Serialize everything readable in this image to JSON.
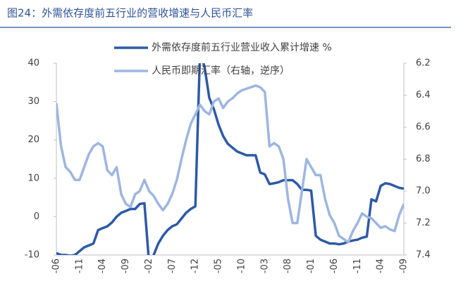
{
  "chart_data": {
    "type": "line",
    "title": "图24：外需依存度前五行业的营收增速与人民币汇率",
    "categories": [
      "-06",
      null,
      null,
      null,
      null,
      "-11",
      null,
      null,
      null,
      null,
      "-04",
      null,
      null,
      null,
      null,
      "-09",
      null,
      null,
      null,
      null,
      "-02",
      null,
      null,
      null,
      null,
      "-07",
      null,
      null,
      null,
      null,
      "-12",
      null,
      null,
      null,
      null,
      "-05",
      null,
      null,
      null,
      null,
      "-10",
      null,
      null,
      null,
      null,
      "-03",
      null,
      null,
      null,
      null,
      "-08",
      null,
      null,
      null,
      null,
      "-01",
      null,
      null,
      null,
      null,
      "-06",
      null,
      null,
      null,
      null,
      "-11",
      null,
      null,
      null,
      null,
      "-04",
      null,
      null,
      null,
      null,
      "-09"
    ],
    "series": [
      {
        "name": "外需依存度前五行业营业收入累计增速 %",
        "color": "#2e59a7",
        "axis": "y",
        "values": [
          -9.5,
          -10,
          -10,
          -10.2,
          -10,
          -9,
          -8,
          -7.5,
          -7,
          -3.5,
          -3,
          -2.5,
          -1.5,
          0,
          1,
          1.5,
          2,
          2,
          3.3,
          3.5,
          -12,
          -10,
          -7,
          -5,
          -3.5,
          -2.5,
          -2,
          -0.5,
          1,
          2,
          2.7,
          43,
          39,
          31,
          28,
          24,
          21,
          19,
          18,
          17,
          16.5,
          16,
          16,
          16,
          11.5,
          11,
          8.5,
          8.7,
          9,
          9.5,
          9.5,
          9.5,
          8.5,
          7,
          7,
          6.8,
          -5,
          -6,
          -6.5,
          -7,
          -7,
          -7.2,
          -7,
          -6.5,
          -6.2,
          -6,
          -5.5,
          -5.2,
          4.5,
          4,
          8,
          8.7,
          8.5,
          8,
          7.5,
          7.3
        ]
      },
      {
        "name": "人民币即期汇率（右轴，逆序）",
        "color": "#9db6e0",
        "axis": "y2",
        "values": [
          6.45,
          6.72,
          6.85,
          6.88,
          6.93,
          6.93,
          6.85,
          6.77,
          6.72,
          6.7,
          6.72,
          6.87,
          6.9,
          6.85,
          7.02,
          7.08,
          7.1,
          7.02,
          7.0,
          6.93,
          7.0,
          7.03,
          7.08,
          7.12,
          7.08,
          7.02,
          6.93,
          6.8,
          6.68,
          6.58,
          6.52,
          6.46,
          6.5,
          6.52,
          6.44,
          6.42,
          6.48,
          6.44,
          6.42,
          6.39,
          6.37,
          6.36,
          6.35,
          6.34,
          6.35,
          6.38,
          6.72,
          6.7,
          6.72,
          6.8,
          7.05,
          7.2,
          7.2,
          7.0,
          6.8,
          6.85,
          6.9,
          6.9,
          7.05,
          7.15,
          7.2,
          7.28,
          7.3,
          7.32,
          7.25,
          7.2,
          7.14,
          7.16,
          7.17,
          7.2,
          7.23,
          7.22,
          7.24,
          7.25,
          7.15,
          7.08
        ]
      }
    ],
    "ylim": [
      -10,
      40
    ],
    "yticks": [
      -10,
      0,
      10,
      20,
      30,
      40
    ],
    "y2lim": [
      6.2,
      7.4
    ],
    "y2ticks": [
      6.2,
      6.4,
      6.6,
      6.8,
      7.0,
      7.2,
      7.4
    ],
    "y2_inverted": true,
    "legend": "top"
  }
}
